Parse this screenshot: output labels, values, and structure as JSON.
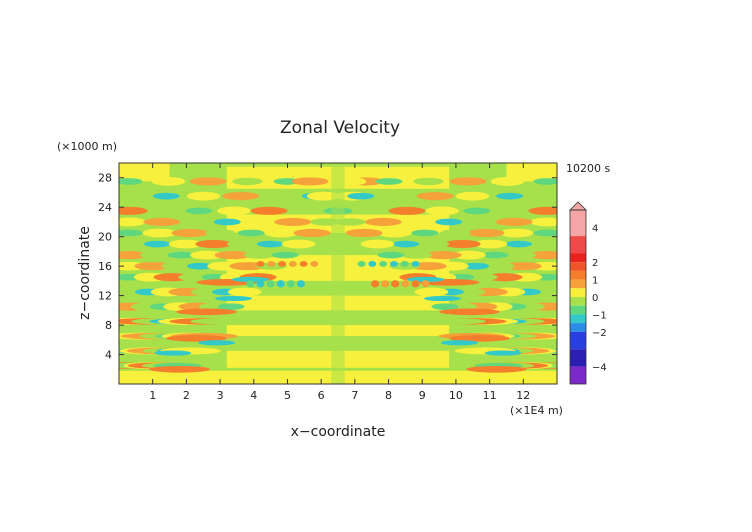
{
  "chart_data": {
    "type": "heatmap",
    "title": "Zonal Velocity",
    "xlabel": "x−coordinate",
    "ylabel": "z−coordinate",
    "x_unit": "(×1E4 m)",
    "y_unit": "(×1000 m)",
    "time_label": "10200 s",
    "x_ticks": [
      "1",
      "2",
      "3",
      "4",
      "5",
      "6",
      "7",
      "8",
      "9",
      "10",
      "11",
      "12"
    ],
    "y_ticks": [
      "4",
      "8",
      "12",
      "16",
      "20",
      "24",
      "28"
    ],
    "xlim": [
      0,
      13
    ],
    "ylim": [
      0,
      30
    ],
    "colorbar": {
      "tick_labels": [
        "4",
        "2",
        "1",
        "0",
        "−1",
        "−2",
        "−4"
      ],
      "levels": [
        {
          "range": [
            3.5,
            5
          ],
          "color": "#f4a6a6"
        },
        {
          "range": [
            2.5,
            3.5
          ],
          "color": "#ef4a4a"
        },
        {
          "range": [
            2,
            2.5
          ],
          "color": "#e8241f"
        },
        {
          "range": [
            1.5,
            2
          ],
          "color": "#f0552a"
        },
        {
          "range": [
            1,
            1.5
          ],
          "color": "#f57e2c"
        },
        {
          "range": [
            0.5,
            1
          ],
          "color": "#f6a23a"
        },
        {
          "range": [
            0,
            0.5
          ],
          "color": "#f7f13d"
        },
        {
          "range": [
            -0.5,
            0
          ],
          "color": "#a6e04a"
        },
        {
          "range": [
            -1,
            -0.5
          ],
          "color": "#5fd77e"
        },
        {
          "range": [
            -1.5,
            -1
          ],
          "color": "#33c9c9"
        },
        {
          "range": [
            -2,
            -1.5
          ],
          "color": "#2a8ee6"
        },
        {
          "range": [
            -3,
            -2
          ],
          "color": "#2a3fe0"
        },
        {
          "range": [
            -4,
            -3
          ],
          "color": "#2a1fb0"
        },
        {
          "range": [
            -5,
            -4
          ],
          "color": "#7b2ac9"
        }
      ]
    },
    "field_colors": {
      "positive_weak": "#f7f13d",
      "negative_weak": "#a6e04a",
      "positive_medium": "#f6a23a",
      "positive_strong": "#f57e2c",
      "negative_medium": "#5fd77e",
      "negative_strong": "#33c9c9"
    }
  }
}
